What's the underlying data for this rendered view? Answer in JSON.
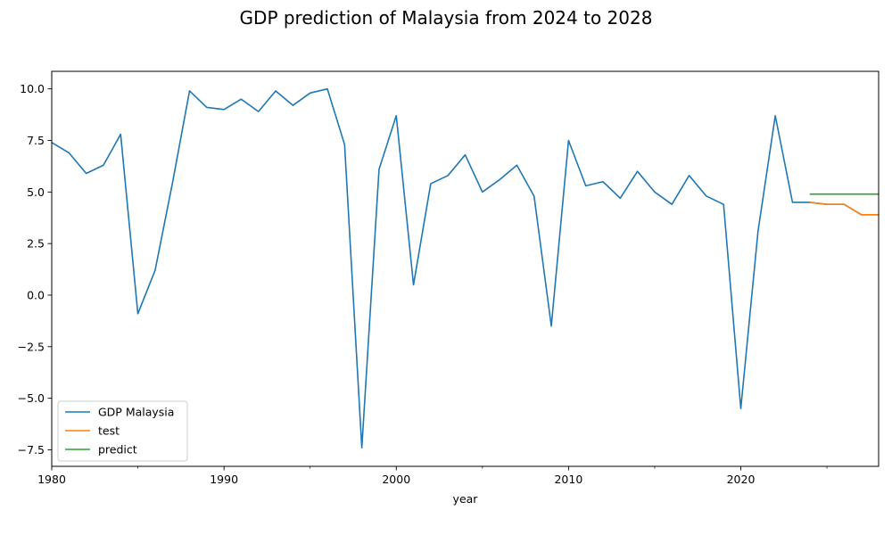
{
  "chart_data": {
    "type": "line",
    "title": "GDP prediction of Malaysia from 2024 to 2028",
    "xlabel": "year",
    "ylabel": "",
    "xlim": [
      1980,
      2028
    ],
    "ylim": [
      -8.3,
      10.85
    ],
    "x_ticks": [
      1980,
      1990,
      2000,
      2010,
      2020
    ],
    "x_tick_labels": [
      "1980",
      "1990",
      "2000",
      "2010",
      "2020"
    ],
    "x_minor_ticks": [
      1985,
      1995,
      2005,
      2015,
      2025
    ],
    "y_ticks": [
      -7.5,
      -5.0,
      -2.5,
      0.0,
      2.5,
      5.0,
      7.5,
      10.0
    ],
    "y_tick_labels": [
      "−7.5",
      "−5.0",
      "−2.5",
      "0.0",
      "2.5",
      "5.0",
      "7.5",
      "10.0"
    ],
    "grid": false,
    "legend_position": "lower-left",
    "series": [
      {
        "name": "GDP Malaysia",
        "color": "#1f77b4",
        "x": [
          1980,
          1981,
          1982,
          1983,
          1984,
          1985,
          1986,
          1987,
          1988,
          1989,
          1990,
          1991,
          1992,
          1993,
          1994,
          1995,
          1996,
          1997,
          1998,
          1999,
          2000,
          2001,
          2002,
          2003,
          2004,
          2005,
          2006,
          2007,
          2008,
          2009,
          2010,
          2011,
          2012,
          2013,
          2014,
          2015,
          2016,
          2017,
          2018,
          2019,
          2020,
          2021,
          2022,
          2023,
          2024,
          2025,
          2026,
          2027,
          2028
        ],
        "values": [
          7.4,
          6.9,
          5.9,
          6.3,
          7.8,
          -0.9,
          1.2,
          5.4,
          9.9,
          9.1,
          9.0,
          9.5,
          8.9,
          9.9,
          9.2,
          9.8,
          10.0,
          7.3,
          -7.4,
          6.1,
          8.7,
          0.5,
          5.4,
          5.8,
          6.8,
          5.0,
          5.6,
          6.3,
          4.8,
          -1.5,
          7.5,
          5.3,
          5.5,
          4.7,
          6.0,
          5.0,
          4.4,
          5.8,
          4.8,
          4.4,
          -5.5,
          3.1,
          8.7,
          4.5,
          4.5,
          4.4,
          4.4,
          3.9,
          3.9
        ]
      },
      {
        "name": "test",
        "color": "#ff7f0e",
        "x": [
          2024,
          2025,
          2026,
          2027,
          2028
        ],
        "values": [
          4.5,
          4.4,
          4.4,
          3.9,
          3.9
        ]
      },
      {
        "name": "predict",
        "color": "#2ca02c",
        "x": [
          2024,
          2025,
          2026,
          2027,
          2028
        ],
        "values": [
          4.9,
          4.9,
          4.9,
          4.9,
          4.9
        ]
      }
    ]
  }
}
